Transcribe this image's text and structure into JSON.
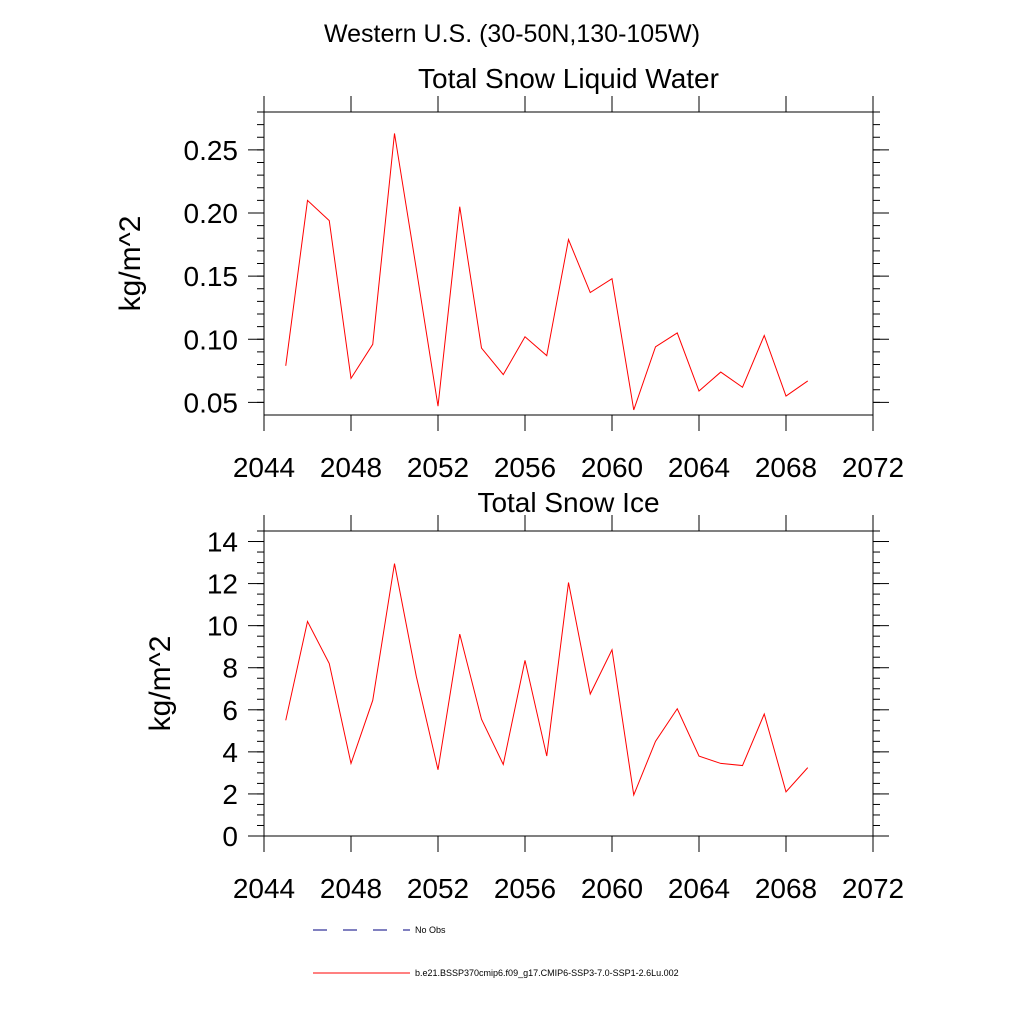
{
  "figure": {
    "suptitle": "Western U.S. (30-50N,130-105W)"
  },
  "colors": {
    "series": "#ff0000",
    "obs": "#000080",
    "axes": "#000000"
  },
  "legend": [
    {
      "label": "No Obs",
      "color": "#000080",
      "dash": "dashed"
    },
    {
      "label": "b.e21.BSSP370cmip6.f09_g17.CMIP6-SSP3-7.0-SSP1-2.6Lu.002",
      "color": "#ff0000",
      "dash": "solid"
    }
  ],
  "chart_data": [
    {
      "type": "line",
      "title": "Total Snow Liquid Water",
      "xlabel": "",
      "ylabel": "kg/m^2",
      "xlim": [
        2044,
        2072
      ],
      "ylim": [
        0.04,
        0.28
      ],
      "xticks": [
        2044,
        2048,
        2052,
        2056,
        2060,
        2064,
        2068,
        2072
      ],
      "yticks": [
        0.05,
        0.1,
        0.15,
        0.2,
        0.25
      ],
      "ytick_labels": [
        "0.05",
        "0.10",
        "0.15",
        "0.20",
        "0.25"
      ],
      "yminor_step": 0.01,
      "grid": false,
      "x": [
        2045,
        2046,
        2047,
        2048,
        2049,
        2050,
        2051,
        2052,
        2053,
        2054,
        2055,
        2056,
        2057,
        2058,
        2059,
        2060,
        2061,
        2062,
        2063,
        2064,
        2065,
        2066,
        2067,
        2068,
        2069
      ],
      "series": [
        {
          "name": "b.e21.BSSP370cmip6.f09_g17.CMIP6-SSP3-7.0-SSP1-2.6Lu.002",
          "values": [
            0.079,
            0.21,
            0.194,
            0.069,
            0.096,
            0.263,
            0.156,
            0.047,
            0.205,
            0.093,
            0.072,
            0.102,
            0.087,
            0.179,
            0.137,
            0.148,
            0.044,
            0.094,
            0.105,
            0.059,
            0.074,
            0.062,
            0.103,
            0.055,
            0.067
          ]
        }
      ]
    },
    {
      "type": "line",
      "title": "Total Snow Ice",
      "xlabel": "",
      "ylabel": "kg/m^2",
      "xlim": [
        2044,
        2072
      ],
      "ylim": [
        0,
        14.5
      ],
      "xticks": [
        2044,
        2048,
        2052,
        2056,
        2060,
        2064,
        2068,
        2072
      ],
      "yticks": [
        0,
        2,
        4,
        6,
        8,
        10,
        12,
        14
      ],
      "ytick_labels": [
        "0",
        "2",
        "4",
        "6",
        "8",
        "10",
        "12",
        "14"
      ],
      "yminor_step": 0.5,
      "grid": false,
      "x": [
        2045,
        2046,
        2047,
        2048,
        2049,
        2050,
        2051,
        2052,
        2053,
        2054,
        2055,
        2056,
        2057,
        2058,
        2059,
        2060,
        2061,
        2062,
        2063,
        2064,
        2065,
        2066,
        2067,
        2068,
        2069
      ],
      "series": [
        {
          "name": "b.e21.BSSP370cmip6.f09_g17.CMIP6-SSP3-7.0-SSP1-2.6Lu.002",
          "values": [
            5.5,
            10.2,
            8.2,
            3.45,
            6.45,
            12.95,
            7.6,
            3.15,
            9.6,
            5.55,
            3.4,
            8.35,
            3.8,
            12.05,
            6.75,
            8.85,
            1.95,
            4.5,
            6.05,
            3.8,
            3.45,
            3.35,
            5.8,
            2.1,
            3.25
          ]
        }
      ]
    }
  ]
}
